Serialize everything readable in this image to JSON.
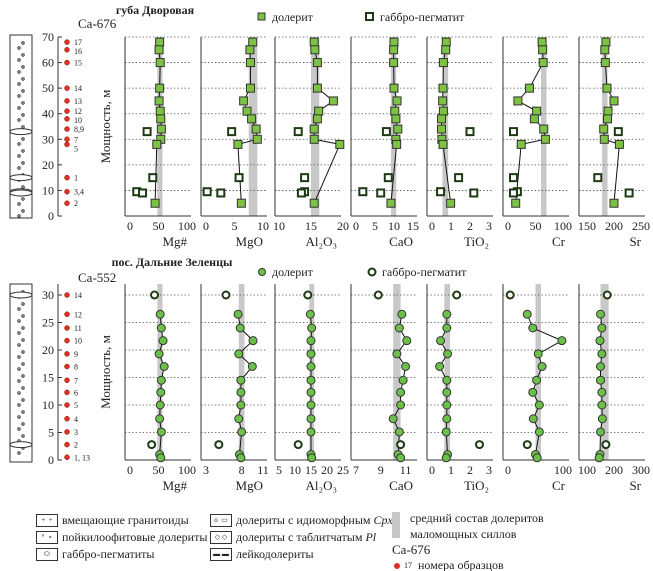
{
  "chart_data": [
    {
      "type": "scatter",
      "title": "губа Дворовая",
      "sample_prefix": "Ca-676",
      "ylabel": "Мощность, м",
      "ylim": [
        0,
        70
      ],
      "yticks": [
        0,
        10,
        20,
        30,
        40,
        50,
        60,
        70
      ],
      "legend": [
        {
          "name": "долерит",
          "marker": "filled-square",
          "color": "#7dc242"
        },
        {
          "name": "габбро-пегматит",
          "marker": "open-square",
          "color": "#1e3a14"
        }
      ],
      "samples": [
        {
          "id": "17",
          "depth": 68
        },
        {
          "id": "16",
          "depth": 65
        },
        {
          "id": "15",
          "depth": 60
        },
        {
          "id": "14",
          "depth": 50
        },
        {
          "id": "13",
          "depth": 45
        },
        {
          "id": "12",
          "depth": 41
        },
        {
          "id": "10",
          "depth": 38
        },
        {
          "id": "8,9",
          "depth": 34
        },
        {
          "id": "7",
          "depth": 30
        },
        {
          "id": "5",
          "depth": 28
        },
        {
          "id": "1",
          "depth": 15
        },
        {
          "id": "3,4",
          "depth": 9.5
        },
        {
          "id": "2",
          "depth": 5
        }
      ],
      "dolerite_depths": [
        68,
        65,
        60,
        50,
        45,
        41,
        38,
        34,
        30,
        28,
        5
      ],
      "pegmatite_depths": [
        33,
        15,
        9.5,
        9
      ],
      "panels": [
        {
          "label": "Mg#",
          "xlim": [
            0,
            100
          ],
          "xticks": [
            0,
            50,
            100
          ],
          "band": [
            48,
            57
          ],
          "dolerite": [
            52,
            51,
            53,
            52,
            51,
            53,
            54,
            55,
            54,
            47,
            44
          ],
          "pegmatite": [
            30,
            40,
            12,
            22
          ]
        },
        {
          "label": "MgO",
          "xlim": [
            0,
            10
          ],
          "xticks": [
            0,
            5,
            10
          ],
          "band": [
            7.5,
            9
          ],
          "dolerite": [
            8.2,
            7.7,
            7.8,
            7.8,
            6.6,
            7.2,
            8.0,
            8.8,
            9.0,
            5.6,
            6.2
          ],
          "pegmatite": [
            4.5,
            5.8,
            0.2,
            2.6
          ]
        },
        {
          "label": "Al₂O₃",
          "xlim": [
            10,
            20
          ],
          "xticks": [
            10,
            15,
            20
          ],
          "band": [
            15,
            16.3
          ],
          "dolerite": [
            15.5,
            15.6,
            16.0,
            16.0,
            18.5,
            16.2,
            16.0,
            15.5,
            15.5,
            19.5,
            15.5
          ],
          "pegmatite": [
            13,
            14,
            14,
            13.5
          ]
        },
        {
          "label": "CaO",
          "xlim": [
            0,
            15
          ],
          "xticks": [
            0,
            5,
            10,
            15
          ],
          "band": [
            9.2,
            10.6
          ],
          "dolerite": [
            10,
            9.9,
            9.9,
            10,
            10.8,
            10.2,
            10.5,
            11,
            10.5,
            10.7,
            9.2
          ],
          "pegmatite": [
            8,
            8.5,
            1.8,
            6.5
          ]
        },
        {
          "label": "TiO₂",
          "xlim": [
            0,
            3
          ],
          "xticks": [
            0,
            1,
            2,
            3
          ],
          "band": [
            0.55,
            0.85
          ],
          "dolerite": [
            0.75,
            0.72,
            0.6,
            0.58,
            0.56,
            0.6,
            0.5,
            0.5,
            0.52,
            0.58,
            0.98
          ],
          "pegmatite": [
            2.0,
            1.4,
            0.45,
            2.2
          ]
        },
        {
          "label": "Cr",
          "xlim": [
            0,
            100
          ],
          "xticks": [
            0,
            50,
            100
          ],
          "band": [
            60,
            70
          ],
          "dolerite": [
            62,
            63,
            64,
            39,
            18,
            52,
            48,
            65,
            68,
            24,
            14
          ],
          "pegmatite": [
            10,
            10,
            17,
            10
          ]
        },
        {
          "label": "Sr",
          "xlim": [
            150,
            250
          ],
          "xticks": [
            150,
            200,
            250
          ],
          "band": [
            178,
            188
          ],
          "dolerite": [
            185,
            183,
            184,
            187,
            200,
            189,
            188,
            181,
            182,
            210,
            200
          ],
          "pegmatite": [
            208,
            170,
            null,
            228
          ]
        }
      ]
    },
    {
      "type": "scatter",
      "title": "пос. Дальние Зеленцы",
      "sample_prefix": "Ca-552",
      "ylabel": "Мощность, м",
      "ylim": [
        0,
        32
      ],
      "yticks": [
        0,
        5,
        10,
        15,
        20,
        25,
        30
      ],
      "legend": [
        {
          "name": "долерит",
          "marker": "filled-circle",
          "color": "#6cc04a"
        },
        {
          "name": "габбро-пегматит",
          "marker": "open-circle",
          "color": "#1e3a14"
        }
      ],
      "samples": [
        {
          "id": "14",
          "depth": 30
        },
        {
          "id": "12",
          "depth": 26.5
        },
        {
          "id": "11",
          "depth": 24
        },
        {
          "id": "10",
          "depth": 21.7
        },
        {
          "id": "9",
          "depth": 19.3
        },
        {
          "id": "8",
          "depth": 17
        },
        {
          "id": "7",
          "depth": 14.5
        },
        {
          "id": "6",
          "depth": 12.3
        },
        {
          "id": "5",
          "depth": 10
        },
        {
          "id": "4",
          "depth": 7.5
        },
        {
          "id": "3",
          "depth": 5.1
        },
        {
          "id": "2",
          "depth": 2.8
        },
        {
          "id": "1, 13",
          "depth": 0.5
        }
      ],
      "dolerite_depths": [
        26.5,
        24,
        21.7,
        19.3,
        17,
        14.5,
        12.3,
        10,
        7.5,
        5.1,
        1,
        0.4
      ],
      "pegmatite_depths": [
        30,
        2.8
      ],
      "panels": [
        {
          "label": "Mg#",
          "xlim": [
            0,
            100
          ],
          "xticks": [
            0,
            50,
            100
          ],
          "band": [
            48,
            57
          ],
          "dolerite": [
            53,
            55,
            58,
            51,
            60,
            55,
            54,
            53,
            52,
            55,
            52,
            54
          ],
          "pegmatite": [
            43,
            38
          ]
        },
        {
          "label": "MgO",
          "xlim": [
            3,
            11
          ],
          "xticks": [
            3,
            8,
            11
          ],
          "band": [
            7.6,
            8.4
          ],
          "dolerite": [
            7.5,
            7.8,
            9.6,
            7.6,
            9.5,
            7.9,
            7.9,
            7.9,
            7.6,
            8.0,
            7.7,
            7.9
          ],
          "pegmatite": [
            5.8,
            4.8
          ]
        },
        {
          "label": "Al₂O₃",
          "xlim": [
            5,
            25
          ],
          "xticks": [
            5,
            10,
            15,
            20,
            25
          ],
          "band": [
            14.5,
            16
          ],
          "dolerite": [
            14.8,
            15.2,
            15,
            15,
            15,
            15,
            15,
            15,
            15,
            15,
            15,
            15.2
          ],
          "pegmatite": [
            14,
            11
          ]
        },
        {
          "label": "CaO",
          "xlim": [
            7,
            11.6
          ],
          "xticks": [
            7,
            9,
            11
          ],
          "band": [
            10.0,
            10.6
          ],
          "dolerite": [
            10.7,
            10.5,
            11.1,
            10.3,
            11.0,
            10.8,
            10.6,
            10.6,
            10.0,
            10.5,
            10.4,
            10.6
          ],
          "pegmatite": [
            8.8,
            10.6
          ]
        },
        {
          "label": "TiO₂",
          "xlim": [
            0,
            3
          ],
          "xticks": [
            0,
            1,
            2,
            3
          ],
          "band": [
            0.65,
            0.95
          ],
          "dolerite": [
            0.78,
            0.78,
            0.45,
            0.82,
            0.4,
            0.78,
            0.78,
            0.78,
            0.78,
            0.75,
            0.82,
            0.75
          ],
          "pegmatite": [
            1.3,
            2.5
          ]
        },
        {
          "label": "Cr",
          "xlim": [
            0,
            100
          ],
          "xticks": [
            0,
            100
          ],
          "band": [
            50,
            60
          ],
          "dolerite": [
            35,
            45,
            98,
            55,
            62,
            52,
            45,
            57,
            46,
            57,
            50,
            53
          ],
          "pegmatite": [
            4,
            35
          ]
        },
        {
          "label": "Sr",
          "xlim": [
            100,
            300
          ],
          "xticks": [
            100,
            200,
            300
          ],
          "band": [
            150,
            180
          ],
          "dolerite": [
            150,
            155,
            148,
            155,
            150,
            150,
            155,
            155,
            157,
            150,
            148,
            145
          ],
          "pegmatite": [
            175,
            170
          ]
        }
      ]
    }
  ],
  "legend": {
    "granitoids": "вмещающие гранитоиды",
    "poikilophitic": "пойкилоофитовые долериты",
    "pegmatites": "габбро-пегматиты",
    "idiomorphic_cpx": "долериты с идиоморфным",
    "cpx": "Cpx",
    "tabular_pl": "долериты с таблитчатым",
    "pl": "Pl",
    "leucodolerites": "лейкодолериты",
    "band_line1": "средний состав долеритов",
    "band_line2": "маломощных силлов",
    "sample_example": "Ca-676",
    "sample_num": "17",
    "sample_text": "номера образцов",
    "band_color": "#c8c8c8",
    "sample_color": "#e0301e"
  }
}
